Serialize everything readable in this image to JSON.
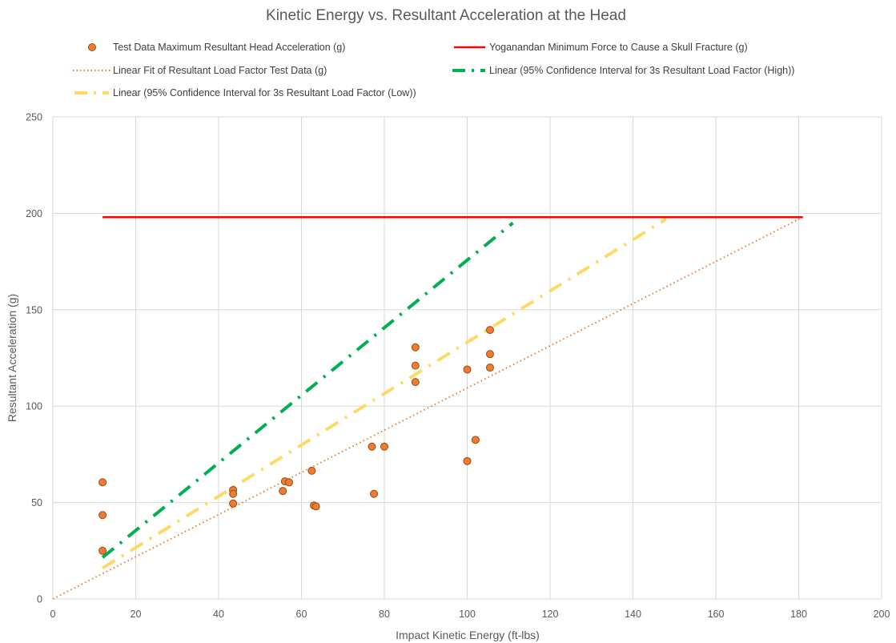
{
  "chart_data": {
    "type": "scatter",
    "title": "Kinetic Energy vs. Resultant Acceleration at the Head",
    "xlabel": "Impact Kinetic Energy  (ft-lbs)",
    "ylabel": "Resultant Acceleration (g)",
    "xlim": [
      0,
      200
    ],
    "ylim": [
      0,
      250
    ],
    "xticks": [
      "0",
      "20",
      "40",
      "60",
      "80",
      "100",
      "120",
      "140",
      "160",
      "180",
      "200"
    ],
    "yticks": [
      "0",
      "50",
      "100",
      "150",
      "200",
      "250"
    ],
    "grid": true,
    "legend_position": "top",
    "series": [
      {
        "name": "Test Data Maximum Resultant Head Acceleration (g)",
        "kind": "points",
        "color": "#ED7D31",
        "points": [
          [
            12,
            60.5
          ],
          [
            12,
            43.5
          ],
          [
            12,
            25
          ],
          [
            43.5,
            56.5
          ],
          [
            43.5,
            54.5
          ],
          [
            43.5,
            49.5
          ],
          [
            55.5,
            56
          ],
          [
            56,
            61
          ],
          [
            57,
            60.5
          ],
          [
            62.5,
            66.5
          ],
          [
            63,
            48.5
          ],
          [
            63.5,
            48
          ],
          [
            77,
            79
          ],
          [
            77.5,
            54.5
          ],
          [
            80,
            79
          ],
          [
            87.5,
            130.5
          ],
          [
            87.5,
            121
          ],
          [
            87.5,
            112.5
          ],
          [
            100,
            119
          ],
          [
            100,
            71.5
          ],
          [
            102,
            82.5
          ],
          [
            105.5,
            139.5
          ],
          [
            105.5,
            127
          ],
          [
            105.5,
            120
          ]
        ]
      },
      {
        "name": "Yoganandan Minimum Force to Cause a Skull Fracture (g)",
        "kind": "line",
        "color": "#FF0000",
        "points": [
          [
            12,
            198
          ],
          [
            181,
            198
          ]
        ]
      },
      {
        "name": "Linear Fit of Resultant Load Factor Test Data (g)",
        "kind": "dotted-line",
        "color": "#ED7D31",
        "points": [
          [
            0,
            0
          ],
          [
            181,
            198
          ]
        ]
      },
      {
        "name": "Linear (95% Confidence Interval for 3s Resultant Load Factor (High))",
        "kind": "dash-dot-line",
        "color": "#00B050",
        "points": [
          [
            12,
            21.5
          ],
          [
            111,
            195
          ]
        ]
      },
      {
        "name": "Linear (95% Confidence Interval for 3s Resultant Load Factor (Low))",
        "kind": "dash-dot-line",
        "color": "#FFD966",
        "points": [
          [
            12,
            16
          ],
          [
            148,
            197
          ]
        ]
      }
    ]
  }
}
